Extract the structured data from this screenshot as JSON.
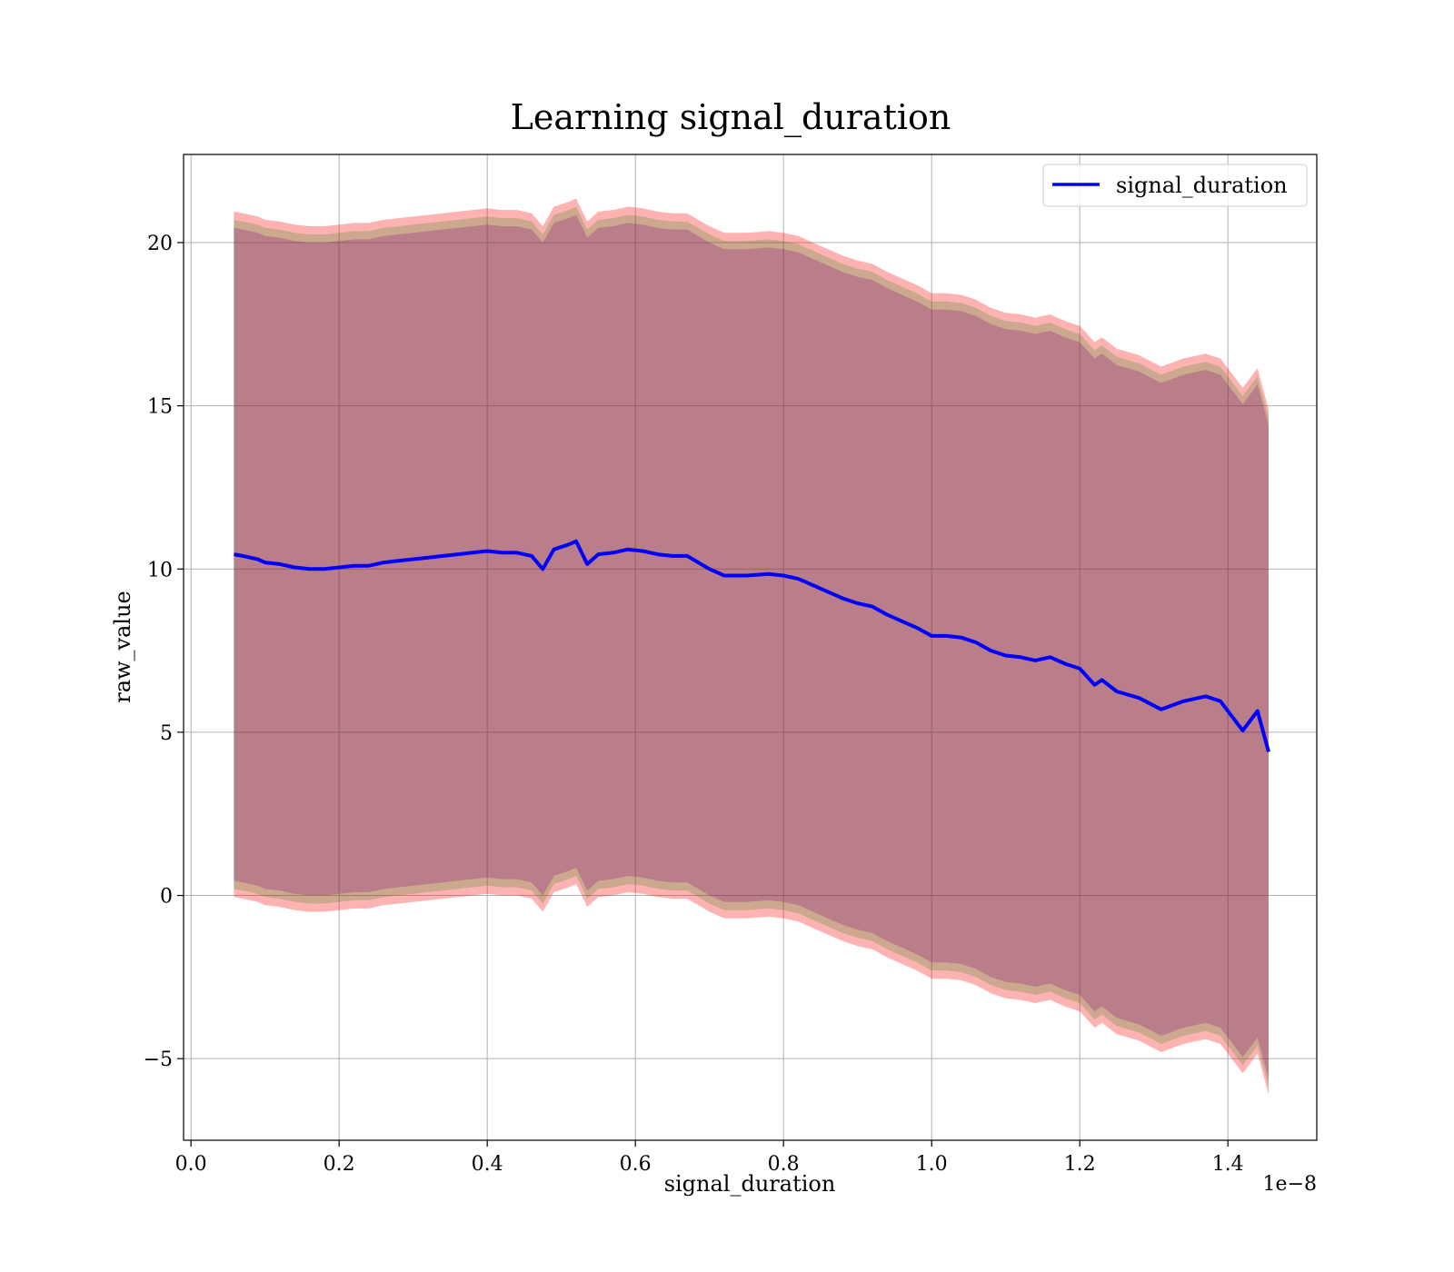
{
  "chart_data": {
    "type": "line",
    "title": "Learning signal_duration",
    "xlabel": "signal_duration",
    "ylabel": "raw_value",
    "x_offset_label": "1e−8",
    "xlim": [
      -0.01,
      1.52
    ],
    "ylim": [
      -7.5,
      22.7
    ],
    "x_ticks": [
      0.0,
      0.2,
      0.4,
      0.6,
      0.8,
      1.0,
      1.2,
      1.4
    ],
    "x_tick_labels": [
      "0.0",
      "0.2",
      "0.4",
      "0.6",
      "0.8",
      "1.0",
      "1.2",
      "1.4"
    ],
    "y_ticks": [
      -5,
      0,
      5,
      10,
      15,
      20
    ],
    "y_tick_labels": [
      "−5",
      "0",
      "5",
      "10",
      "15",
      "20"
    ],
    "grid": true,
    "legend_position": "top-right",
    "series": [
      {
        "name": "signal_duration",
        "color": "#0000ff",
        "x": [
          0.058,
          0.07,
          0.08,
          0.09,
          0.1,
          0.12,
          0.14,
          0.16,
          0.18,
          0.2,
          0.22,
          0.24,
          0.26,
          0.28,
          0.3,
          0.32,
          0.34,
          0.36,
          0.38,
          0.4,
          0.42,
          0.44,
          0.46,
          0.475,
          0.49,
          0.51,
          0.52,
          0.535,
          0.55,
          0.57,
          0.59,
          0.61,
          0.63,
          0.65,
          0.67,
          0.7,
          0.72,
          0.75,
          0.78,
          0.8,
          0.82,
          0.84,
          0.86,
          0.88,
          0.9,
          0.92,
          0.94,
          0.96,
          0.98,
          1.0,
          1.02,
          1.04,
          1.06,
          1.08,
          1.1,
          1.12,
          1.14,
          1.16,
          1.18,
          1.2,
          1.22,
          1.23,
          1.25,
          1.28,
          1.31,
          1.34,
          1.37,
          1.39,
          1.42,
          1.44,
          1.455
        ],
        "y": [
          10.45,
          10.4,
          10.35,
          10.3,
          10.2,
          10.15,
          10.05,
          10.0,
          10.0,
          10.05,
          10.1,
          10.1,
          10.2,
          10.25,
          10.3,
          10.35,
          10.4,
          10.45,
          10.5,
          10.55,
          10.5,
          10.5,
          10.4,
          10.0,
          10.6,
          10.75,
          10.85,
          10.15,
          10.45,
          10.5,
          10.6,
          10.55,
          10.45,
          10.4,
          10.4,
          10.0,
          9.8,
          9.8,
          9.85,
          9.8,
          9.7,
          9.5,
          9.3,
          9.1,
          8.95,
          8.85,
          8.6,
          8.4,
          8.2,
          7.95,
          7.95,
          7.9,
          7.75,
          7.5,
          7.35,
          7.3,
          7.2,
          7.3,
          7.1,
          6.95,
          6.45,
          6.6,
          6.25,
          6.05,
          5.7,
          5.95,
          6.1,
          5.95,
          5.05,
          5.65,
          4.4
        ]
      }
    ],
    "bands": [
      {
        "color": "#ff0000",
        "opacity": 0.3,
        "halfwidth": 10.5
      },
      {
        "color": "#008000",
        "opacity": 0.2,
        "halfwidth": 10.25
      },
      {
        "color": "#800080",
        "opacity": 0.25,
        "halfwidth": 10.0
      }
    ]
  }
}
